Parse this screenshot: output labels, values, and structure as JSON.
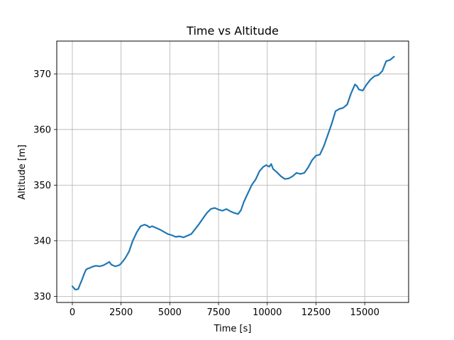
{
  "chart_data": {
    "type": "line",
    "title": "Time vs Altitude",
    "xlabel": "Time [s]",
    "ylabel": "Altitude [m]",
    "xlim": [
      -800,
      17250
    ],
    "ylim": [
      328.9,
      375.9
    ],
    "grid": true,
    "x_ticks": [
      0,
      2500,
      5000,
      7500,
      10000,
      12500,
      15000
    ],
    "y_ticks": [
      330,
      340,
      350,
      360,
      370
    ],
    "series": [
      {
        "color": "#1f77b4",
        "x": [
          0,
          150,
          300,
          400,
          500,
          600,
          700,
          800,
          900,
          1000,
          1200,
          1400,
          1600,
          1800,
          1900,
          2000,
          2200,
          2400,
          2500,
          2700,
          2900,
          3100,
          3300,
          3500,
          3700,
          3850,
          3950,
          4100,
          4300,
          4500,
          4700,
          4900,
          5100,
          5300,
          5500,
          5700,
          5900,
          6100,
          6300,
          6500,
          6700,
          6900,
          7100,
          7300,
          7500,
          7700,
          7900,
          8100,
          8300,
          8500,
          8650,
          8800,
          9000,
          9200,
          9400,
          9600,
          9800,
          9950,
          10100,
          10200,
          10300,
          10500,
          10700,
          10900,
          11100,
          11300,
          11500,
          11700,
          11900,
          12100,
          12300,
          12500,
          12700,
          12900,
          13100,
          13300,
          13500,
          13700,
          13900,
          14100,
          14300,
          14500,
          14600,
          14700,
          14900,
          15100,
          15300,
          15500,
          15700,
          15900,
          16100,
          16300,
          16500
        ],
        "y": [
          331.8,
          331.2,
          331.3,
          332.2,
          333.0,
          334.0,
          334.8,
          335.0,
          335.1,
          335.3,
          335.5,
          335.4,
          335.6,
          336.0,
          336.2,
          335.7,
          335.4,
          335.6,
          335.9,
          336.8,
          338.0,
          340.0,
          341.5,
          342.6,
          342.9,
          342.7,
          342.4,
          342.6,
          342.3,
          342.0,
          341.6,
          341.2,
          341.0,
          340.7,
          340.8,
          340.6,
          340.9,
          341.2,
          342.1,
          343.0,
          344.0,
          345.0,
          345.7,
          345.9,
          345.6,
          345.4,
          345.7,
          345.3,
          345.0,
          344.8,
          345.5,
          347.0,
          348.5,
          350.0,
          351.0,
          352.5,
          353.3,
          353.6,
          353.3,
          353.8,
          352.9,
          352.3,
          351.6,
          351.1,
          351.2,
          351.6,
          352.2,
          352.0,
          352.2,
          353.2,
          354.5,
          355.3,
          355.5,
          357.0,
          359.0,
          361.0,
          363.3,
          363.7,
          363.9,
          364.5,
          366.5,
          368.1,
          367.8,
          367.2,
          367.0,
          368.1,
          369.0,
          369.6,
          369.8,
          370.5,
          372.3,
          372.5,
          373.1
        ]
      }
    ]
  }
}
